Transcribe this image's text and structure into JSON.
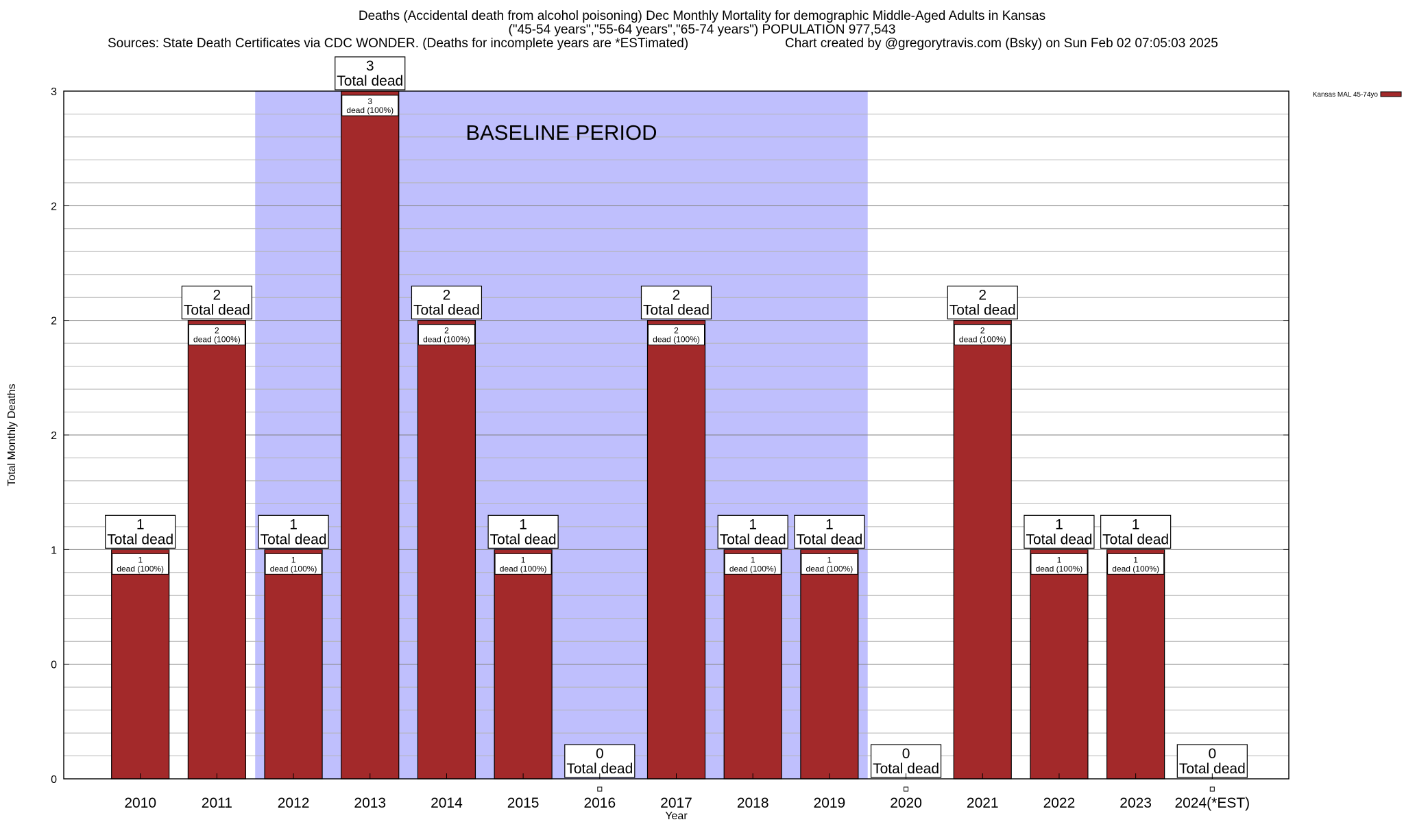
{
  "chart_data": {
    "type": "bar",
    "title_lines": [
      "Deaths (Accidental death from alcohol poisoning) Dec Monthly Mortality for demographic Middle-Aged Adults in Kansas",
      "(\"45-54 years\",\"55-64 years\",\"65-74 years\") POPULATION 977,543"
    ],
    "sources": "Sources: State Death Certificates via CDC WONDER. (Deaths for incomplete years are *ESTimated)",
    "credit": "Chart created by @gregorytravis.com (Bsky) on Sun Feb 02 07:05:03 2025",
    "xlabel": "Year",
    "ylabel": "Total Monthly Deaths",
    "categories": [
      "2010",
      "2011",
      "2012",
      "2013",
      "2014",
      "2015",
      "2016",
      "2017",
      "2018",
      "2019",
      "2020",
      "2021",
      "2022",
      "2023",
      "2024(*EST)"
    ],
    "series": [
      {
        "name": "Kansas MAL 45-74yo",
        "values": [
          1,
          2,
          1,
          3,
          2,
          1,
          0,
          2,
          1,
          1,
          0,
          2,
          1,
          1,
          0
        ],
        "color": "#a3292a"
      }
    ],
    "ylim": [
      0,
      3
    ],
    "y_tick_values": [
      0,
      0.5,
      1,
      1.5,
      2,
      2.5,
      3
    ],
    "y_tick_labels": [
      "0",
      "0",
      "1",
      "2",
      "2",
      "2",
      "3"
    ],
    "minor_grid_step": 0.1,
    "grid": true,
    "legend_position": "top-right",
    "total_label_caption": "Total dead",
    "inner_label_suffix": "dead (100%)",
    "annotation": "BASELINE PERIOD",
    "baseline_period": {
      "start": "2012",
      "end": "2019",
      "color": "#bfbffd"
    }
  }
}
